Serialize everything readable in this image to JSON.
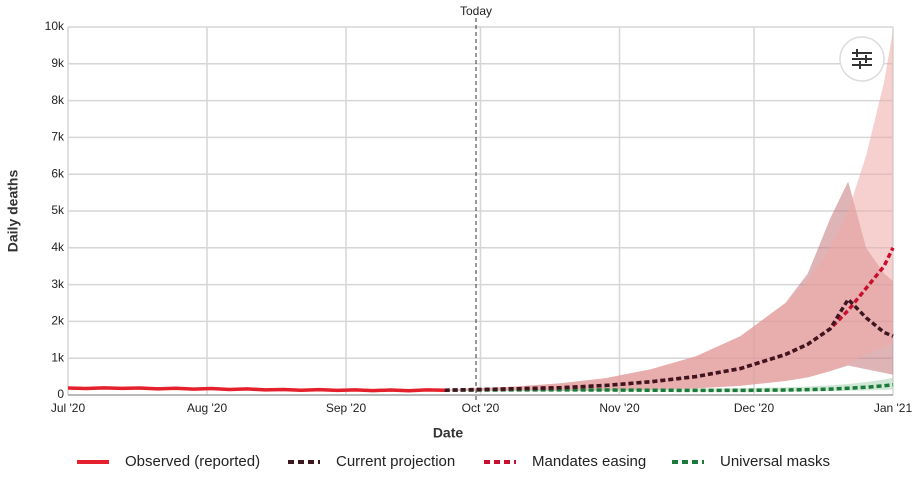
{
  "chart_data": {
    "type": "line",
    "marker": "Today",
    "marker_x": 91,
    "xlabel": "Date",
    "ylabel": "Daily deaths",
    "xlim": [
      0,
      184
    ],
    "xticks": [
      {
        "value": 0,
        "label": "Jul '20"
      },
      {
        "value": 31,
        "label": "Aug '20"
      },
      {
        "value": 62,
        "label": "Sep '20"
      },
      {
        "value": 92,
        "label": "Oct '20"
      },
      {
        "value": 123,
        "label": "Nov '20"
      },
      {
        "value": 153,
        "label": "Dec '20"
      },
      {
        "value": 184,
        "label": "Jan '21"
      }
    ],
    "ylim": [
      0,
      10000
    ],
    "yticks": [
      0,
      {
        "value": 1000,
        "label": "1k"
      },
      {
        "value": 2000,
        "label": "2k"
      },
      {
        "value": 3000,
        "label": "3k"
      },
      {
        "value": 4000,
        "label": "4k"
      },
      {
        "value": 5000,
        "label": "5k"
      },
      {
        "value": 6000,
        "label": "6k"
      },
      {
        "value": 7000,
        "label": "7k"
      },
      {
        "value": 8000,
        "label": "8k"
      },
      {
        "value": 9000,
        "label": "9k"
      },
      {
        "value": 10000,
        "label": "10k"
      }
    ],
    "grid": true,
    "series": [
      {
        "name": "Observed (reported)",
        "color": "#e3202b",
        "dashed": false,
        "x": [
          0,
          4,
          8,
          12,
          16,
          20,
          24,
          28,
          32,
          36,
          40,
          44,
          48,
          52,
          56,
          60,
          64,
          68,
          72,
          76,
          80,
          84
        ],
        "values": [
          190,
          175,
          195,
          180,
          190,
          165,
          185,
          160,
          175,
          150,
          165,
          140,
          150,
          130,
          145,
          125,
          140,
          120,
          135,
          115,
          140,
          130
        ]
      },
      {
        "name": "Current projection",
        "color": "#3d1620",
        "dashed": true,
        "band_color": "#c4767b",
        "x": [
          84,
          92,
          100,
          110,
          120,
          130,
          140,
          150,
          160,
          165,
          170,
          174,
          178,
          182,
          184
        ],
        "values": [
          130,
          150,
          170,
          200,
          260,
          360,
          500,
          720,
          1100,
          1380,
          1800,
          2600,
          2100,
          1700,
          1600
        ],
        "upper": [
          140,
          190,
          230,
          320,
          460,
          700,
          1050,
          1600,
          2500,
          3300,
          4800,
          5800,
          4000,
          3300,
          3100
        ],
        "lower": [
          120,
          120,
          120,
          110,
          120,
          140,
          180,
          250,
          380,
          480,
          650,
          800,
          700,
          600,
          550
        ]
      },
      {
        "name": "Mandates easing",
        "color": "#c8102e",
        "dashed": true,
        "band_color": "#eeaaa8",
        "x": [
          84,
          92,
          100,
          110,
          120,
          130,
          140,
          150,
          160,
          165,
          170,
          174,
          178,
          182,
          184
        ],
        "values": [
          130,
          150,
          170,
          200,
          260,
          360,
          500,
          720,
          1100,
          1380,
          1800,
          2300,
          2900,
          3500,
          4000
        ],
        "upper": [
          140,
          190,
          230,
          320,
          460,
          700,
          1050,
          1600,
          2500,
          3100,
          4000,
          5000,
          6500,
          8500,
          9900
        ],
        "lower": [
          120,
          120,
          120,
          110,
          120,
          140,
          180,
          250,
          380,
          480,
          650,
          850,
          1100,
          1300,
          1400
        ]
      },
      {
        "name": "Universal masks",
        "color": "#1b7a3a",
        "dashed": true,
        "band_color": "#a9d3b4",
        "x": [
          84,
          92,
          100,
          110,
          120,
          130,
          140,
          150,
          160,
          165,
          170,
          174,
          178,
          182,
          184
        ],
        "values": [
          130,
          135,
          140,
          140,
          135,
          130,
          125,
          125,
          135,
          145,
          160,
          185,
          210,
          250,
          280
        ],
        "upper": [
          140,
          160,
          170,
          175,
          175,
          175,
          175,
          185,
          210,
          230,
          260,
          300,
          350,
          420,
          470
        ],
        "lower": [
          120,
          115,
          115,
          110,
          105,
          100,
          95,
          90,
          95,
          100,
          105,
          115,
          125,
          140,
          150
        ]
      }
    ]
  }
}
